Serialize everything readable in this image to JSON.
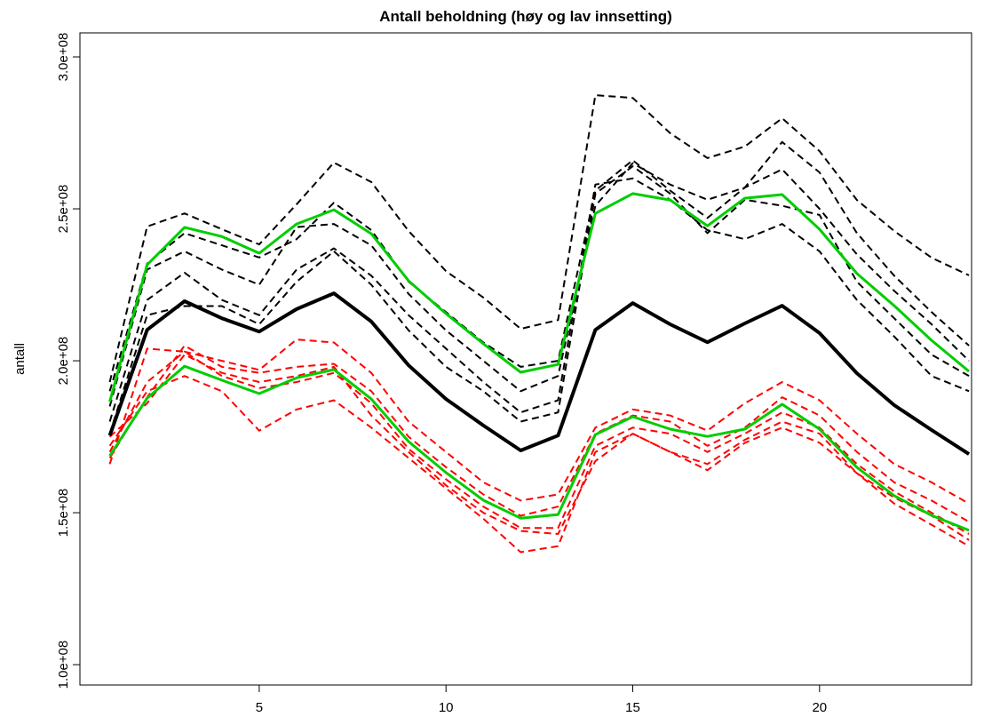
{
  "chart_data": {
    "type": "line",
    "title": "Antall beholdning (høy og lav innsetting)",
    "y_label": "antall",
    "x": [
      1,
      2,
      3,
      4,
      5,
      6,
      7,
      8,
      9,
      10,
      11,
      12,
      13,
      14,
      15,
      16,
      17,
      18,
      19,
      20,
      21,
      22,
      23,
      24
    ],
    "xlim": [
      0.2,
      24.07
    ],
    "xticks": [
      5,
      10,
      15,
      20
    ],
    "ylim": [
      93300000.0,
      307900000.0
    ],
    "yticks": [
      {
        "value": 100000000.0,
        "label": "1.0e+08"
      },
      {
        "value": 150000000.0,
        "label": "1.5e+08"
      },
      {
        "value": 200000000.0,
        "label": "2.0e+08"
      },
      {
        "value": 250000000.0,
        "label": "2.5e+08"
      },
      {
        "value": 300000000.0,
        "label": "3.0e+08"
      }
    ],
    "series": [
      {
        "color": "#000000",
        "dashed": true,
        "width": 2,
        "values": [
          193000000.0,
          244200000.0,
          248500000.0,
          243300000.0,
          238300000.0,
          251500000.0,
          265200000.0,
          258800000.0,
          242700000.0,
          229500000.0,
          220800000.0,
          210500000.0,
          213400000.0,
          287400000.0,
          286500000.0,
          274900000.0,
          266700000.0,
          270500000.0,
          279800000.0,
          269000000.0,
          252900000.0,
          242700000.0,
          233900000.0,
          228100000.0
        ]
      },
      {
        "color": "#000000",
        "dashed": true,
        "width": 2,
        "values": [
          190000000.0,
          232000000.0,
          242000000.0,
          238000000.0,
          234000000.0,
          240000000.0,
          252000000.0,
          243000000.0,
          226000000.0,
          216000000.0,
          206000000.0,
          198000000.0,
          200000000.0,
          256000000.0,
          266000000.0,
          256000000.0,
          247000000.0,
          257000000.0,
          263000000.0,
          250000000.0,
          235000000.0,
          223000000.0,
          212000000.0,
          200000000.0
        ]
      },
      {
        "color": "#000000",
        "dashed": true,
        "width": 2,
        "values": [
          185000000.0,
          230000000.0,
          236000000.0,
          230000000.0,
          225000000.0,
          244000000.0,
          245000000.0,
          238000000.0,
          222000000.0,
          210000000.0,
          200000000.0,
          190000000.0,
          195000000.0,
          251000000.0,
          265000000.0,
          258000000.0,
          253000000.0,
          257000000.0,
          272000000.0,
          262000000.0,
          242000000.0,
          228000000.0,
          216000000.0,
          205000000.0
        ]
      },
      {
        "color": "#000000",
        "dashed": true,
        "width": 2,
        "values": [
          180000000.0,
          220000000.0,
          229000000.0,
          220000000.0,
          215000000.0,
          230000000.0,
          237000000.0,
          228000000.0,
          215000000.0,
          204000000.0,
          193000000.0,
          183000000.0,
          187000000.0,
          258000000.0,
          260000000.0,
          253000000.0,
          243000000.0,
          240000000.0,
          245000000.0,
          236000000.0,
          220000000.0,
          208000000.0,
          195000000.0,
          190000000.0
        ]
      },
      {
        "color": "#000000",
        "dashed": true,
        "width": 2,
        "values": [
          176000000.0,
          215000000.0,
          218000000.0,
          218000000.0,
          212000000.0,
          226000000.0,
          236000000.0,
          225000000.0,
          210000000.0,
          198000000.0,
          190000000.0,
          180000000.0,
          183000000.0,
          255000000.0,
          264000000.0,
          255000000.0,
          242000000.0,
          253000000.0,
          251000000.0,
          248000000.0,
          226000000.0,
          214000000.0,
          202000000.0,
          195000000.0
        ]
      },
      {
        "color": "#ff0000",
        "dashed": true,
        "width": 2,
        "values": [
          170000000.0,
          193000000.0,
          203000000.0,
          200000000.0,
          197000000.0,
          207000000.0,
          206000000.0,
          196000000.0,
          180000000.0,
          170000000.0,
          160000000.0,
          154000000.0,
          156000000.0,
          178000000.0,
          184000000.0,
          182000000.0,
          177000000.0,
          186000000.0,
          193000000.0,
          187000000.0,
          176000000.0,
          166000000.0,
          160000000.0,
          153000000.0
        ]
      },
      {
        "color": "#ff0000",
        "dashed": true,
        "width": 2,
        "values": [
          168000000.0,
          188000000.0,
          205000000.0,
          198000000.0,
          196000000.0,
          198000000.0,
          199000000.0,
          190000000.0,
          175000000.0,
          165000000.0,
          156000000.0,
          149000000.0,
          152000000.0,
          176000000.0,
          182000000.0,
          180000000.0,
          172000000.0,
          178000000.0,
          188000000.0,
          182000000.0,
          170000000.0,
          160000000.0,
          154000000.0,
          147000000.0
        ]
      },
      {
        "color": "#ff0000",
        "dashed": true,
        "width": 2,
        "values": [
          166000000.0,
          204000000.0,
          203000000.0,
          195000000.0,
          191000000.0,
          193000000.0,
          196000000.0,
          186000000.0,
          171000000.0,
          161000000.0,
          152000000.0,
          145000000.0,
          145000000.0,
          172000000.0,
          178000000.0,
          176000000.0,
          170000000.0,
          176000000.0,
          183000000.0,
          178000000.0,
          166000000.0,
          157000000.0,
          150000000.0,
          143000000.0
        ]
      },
      {
        "color": "#ff0000",
        "dashed": true,
        "width": 2,
        "values": [
          172000000.0,
          190000000.0,
          195000000.0,
          190000000.0,
          177000000.0,
          184000000.0,
          187000000.0,
          178000000.0,
          168000000.0,
          158000000.0,
          148000000.0,
          137000000.0,
          139000000.0,
          170000000.0,
          176000000.0,
          170000000.0,
          164000000.0,
          173000000.0,
          178000000.0,
          173000000.0,
          163000000.0,
          153000000.0,
          146000000.0,
          139000000.0
        ]
      },
      {
        "color": "#ff0000",
        "dashed": true,
        "width": 2,
        "values": [
          175000000.0,
          186000000.0,
          202000000.0,
          196000000.0,
          193000000.0,
          195000000.0,
          198000000.0,
          182000000.0,
          170000000.0,
          159000000.0,
          150000000.0,
          144000000.0,
          143000000.0,
          167000000.0,
          176000000.0,
          170000000.0,
          166000000.0,
          174000000.0,
          180000000.0,
          176000000.0,
          163000000.0,
          155000000.0,
          149000000.0,
          141000000.0
        ]
      },
      {
        "color": "#000000",
        "dashed": false,
        "width": 4,
        "values": [
          175400000.0,
          210200000.0,
          219600000.0,
          214000000.0,
          209600000.0,
          217000000.0,
          222200000.0,
          212900000.0,
          198500000.0,
          187400000.0,
          178700000.0,
          170500000.0,
          175400000.0,
          210200000.0,
          219000000.0,
          212000000.0,
          206100000.0,
          212300000.0,
          218100000.0,
          209100000.0,
          195900000.0,
          185400000.0,
          177200000.0,
          169300000.0
        ]
      },
      {
        "color": "#00cd00",
        "dashed": false,
        "width": 3,
        "values": [
          186500000.0,
          231600000.0,
          243900000.0,
          240900000.0,
          235400000.0,
          245000000.0,
          249700000.0,
          241800000.0,
          226300000.0,
          215500000.0,
          205600000.0,
          196200000.0,
          198800000.0,
          248500000.0,
          255000000.0,
          252900000.0,
          244400000.0,
          253500000.0,
          254700000.0,
          243300000.0,
          228700000.0,
          218100000.0,
          206700000.0,
          196500000.0
        ]
      },
      {
        "color": "#00cd00",
        "dashed": false,
        "width": 3,
        "values": [
          168700000.0,
          187700000.0,
          198200000.0,
          193600000.0,
          189200000.0,
          194400000.0,
          197100000.0,
          187400000.0,
          173400000.0,
          163200000.0,
          154100000.0,
          148200000.0,
          149400000.0,
          175700000.0,
          181600000.0,
          177500000.0,
          175100000.0,
          177500000.0,
          185700000.0,
          177500000.0,
          164900000.0,
          155600000.0,
          149100000.0,
          144200000.0
        ]
      }
    ]
  }
}
